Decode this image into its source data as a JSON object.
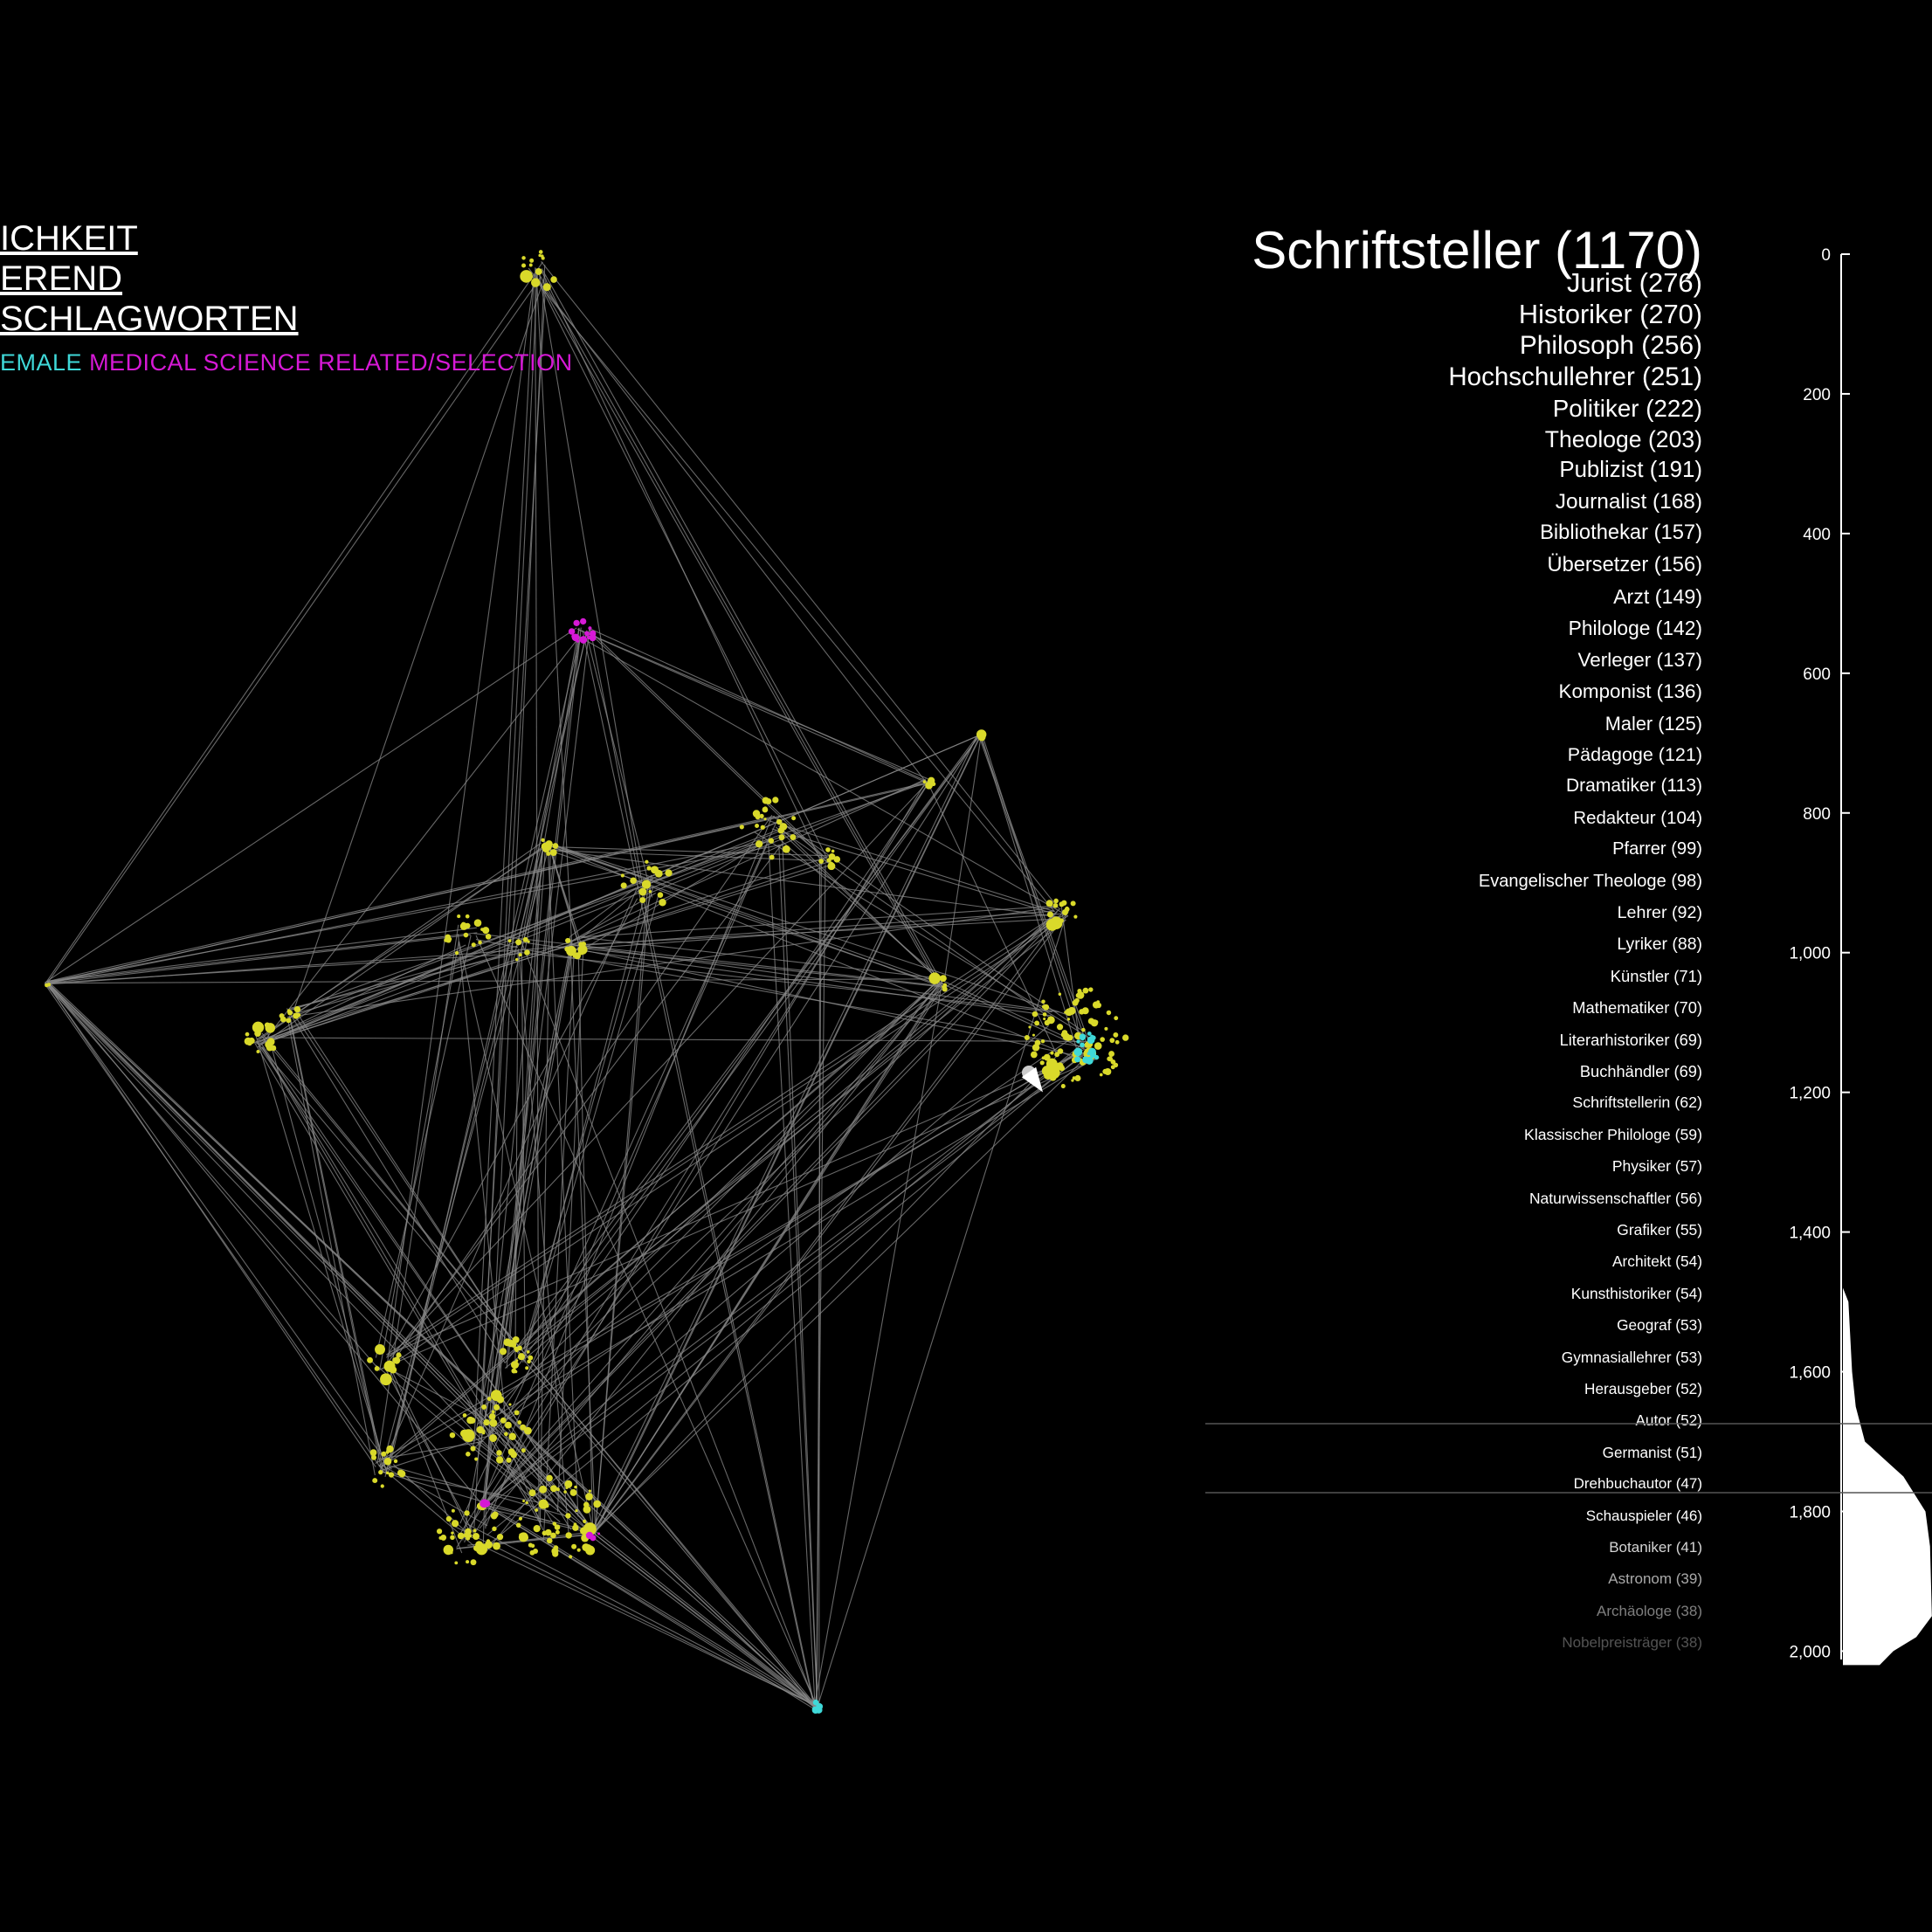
{
  "header": {
    "lines": [
      "ICHKEIT",
      "EREND",
      "SCHLAGWORTEN"
    ]
  },
  "legend": {
    "female_label": "EMALE",
    "medical_label": "MEDICAL SCIENCE RELATED/SELECTION",
    "female_color": "#3fd8d8",
    "medical_color": "#d619d6"
  },
  "colors": {
    "node": "#d9d92a",
    "edge": "#8a8a8a",
    "background": "#000000"
  },
  "chart_data": {
    "type": "bar",
    "title": "Schriftsteller (1170)",
    "terms": [
      {
        "label": "Schriftsteller (1170)",
        "value": 1170
      },
      {
        "label": "Jurist (276)",
        "value": 276
      },
      {
        "label": "Historiker (270)",
        "value": 270
      },
      {
        "label": "Philosoph (256)",
        "value": 256
      },
      {
        "label": "Hochschullehrer (251)",
        "value": 251
      },
      {
        "label": "Politiker (222)",
        "value": 222
      },
      {
        "label": "Theologe (203)",
        "value": 203
      },
      {
        "label": "Publizist (191)",
        "value": 191
      },
      {
        "label": "Journalist (168)",
        "value": 168
      },
      {
        "label": "Bibliothekar (157)",
        "value": 157
      },
      {
        "label": "Übersetzer (156)",
        "value": 156
      },
      {
        "label": "Arzt (149)",
        "value": 149
      },
      {
        "label": "Philologe (142)",
        "value": 142
      },
      {
        "label": "Verleger (137)",
        "value": 137
      },
      {
        "label": "Komponist (136)",
        "value": 136
      },
      {
        "label": "Maler (125)",
        "value": 125
      },
      {
        "label": "Pädagoge (121)",
        "value": 121
      },
      {
        "label": "Dramatiker (113)",
        "value": 113
      },
      {
        "label": "Redakteur (104)",
        "value": 104
      },
      {
        "label": "Pfarrer (99)",
        "value": 99
      },
      {
        "label": "Evangelischer Theologe (98)",
        "value": 98
      },
      {
        "label": "Lehrer (92)",
        "value": 92
      },
      {
        "label": "Lyriker (88)",
        "value": 88
      },
      {
        "label": "Künstler (71)",
        "value": 71
      },
      {
        "label": "Mathematiker (70)",
        "value": 70
      },
      {
        "label": "Literarhistoriker (69)",
        "value": 69
      },
      {
        "label": "Buchhändler (69)",
        "value": 69
      },
      {
        "label": "Schriftstellerin (62)",
        "value": 62
      },
      {
        "label": "Klassischer Philologe (59)",
        "value": 59
      },
      {
        "label": "Physiker (57)",
        "value": 57
      },
      {
        "label": "Naturwissenschaftler (56)",
        "value": 56
      },
      {
        "label": "Grafiker (55)",
        "value": 55
      },
      {
        "label": "Architekt (54)",
        "value": 54
      },
      {
        "label": "Kunsthistoriker (54)",
        "value": 54
      },
      {
        "label": "Geograf (53)",
        "value": 53
      },
      {
        "label": "Gymnasiallehrer (53)",
        "value": 53
      },
      {
        "label": "Herausgeber (52)",
        "value": 52
      },
      {
        "label": "Autor (52)",
        "value": 52
      },
      {
        "label": "Germanist (51)",
        "value": 51
      },
      {
        "label": "Drehbuchautor (47)",
        "value": 47
      },
      {
        "label": "Schauspieler (46)",
        "value": 46
      },
      {
        "label": "Botaniker (41)",
        "value": 41
      },
      {
        "label": "Astronom (39)",
        "value": 39
      },
      {
        "label": "Archäologe (38)",
        "value": 38
      },
      {
        "label": "Nobelpreisträger (38)",
        "value": 38
      }
    ],
    "axis": {
      "ticks": [
        "0",
        "200",
        "400",
        "600",
        "800",
        "1,000",
        "1,200",
        "1,400",
        "1,600",
        "1,800",
        "2,000"
      ],
      "range": [
        0,
        2000
      ]
    },
    "distribution": [
      {
        "rank": 1480,
        "count": 0
      },
      {
        "rank": 1500,
        "count": 6
      },
      {
        "rank": 1550,
        "count": 8
      },
      {
        "rank": 1600,
        "count": 10
      },
      {
        "rank": 1650,
        "count": 14
      },
      {
        "rank": 1700,
        "count": 24
      },
      {
        "rank": 1750,
        "count": 66
      },
      {
        "rank": 1800,
        "count": 90
      },
      {
        "rank": 1850,
        "count": 95
      },
      {
        "rank": 1900,
        "count": 96
      },
      {
        "rank": 1950,
        "count": 97
      },
      {
        "rank": 1980,
        "count": 80
      },
      {
        "rank": 2000,
        "count": 55
      },
      {
        "rank": 2020,
        "count": 40
      }
    ],
    "grid": false
  }
}
